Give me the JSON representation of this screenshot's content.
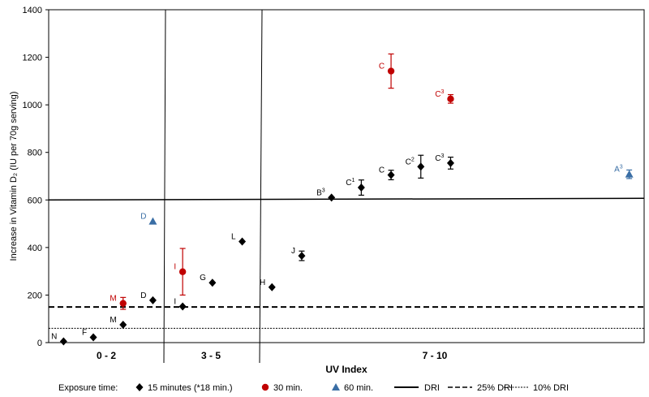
{
  "chart_data": {
    "type": "scatter",
    "ylabel": "Increase in Vitamin D₂ (IU per 70g serving)",
    "xlabel": "UV Index",
    "ylim": [
      0,
      1400
    ],
    "yticks": [
      0,
      200,
      400,
      600,
      800,
      1000,
      1200,
      1400
    ],
    "groups": [
      "0 - 2",
      "3 - 5",
      "7 - 10"
    ],
    "colors": {
      "15": "#000000",
      "30": "#c00000",
      "60": "#3a6ea5"
    },
    "points": [
      {
        "series": "15",
        "label": "N",
        "x": 0.5,
        "y": 5
      },
      {
        "series": "15",
        "label": "F",
        "x": 1.5,
        "y": 22
      },
      {
        "series": "15",
        "label": "M",
        "x": 2.5,
        "y": 75
      },
      {
        "series": "30",
        "label": "M",
        "x": 2.5,
        "y": 165,
        "err": 25
      },
      {
        "series": "15",
        "label": "D",
        "x": 3.5,
        "y": 178
      },
      {
        "series": "60",
        "label": "D",
        "x": 3.5,
        "y": 510
      },
      {
        "series": "15",
        "label": "I",
        "x": 4.5,
        "y": 152
      },
      {
        "series": "30",
        "label": "I",
        "x": 4.5,
        "y": 298,
        "err": 98
      },
      {
        "series": "15",
        "label": "G",
        "x": 5.5,
        "y": 252
      },
      {
        "series": "15",
        "label": "L",
        "x": 6.5,
        "y": 425
      },
      {
        "series": "15",
        "label": "H",
        "x": 7.5,
        "y": 233
      },
      {
        "series": "15",
        "label": "J",
        "x": 8.5,
        "y": 365,
        "err": 20
      },
      {
        "series": "15",
        "label": "B",
        "sup": "3",
        "x": 9.5,
        "y": 610
      },
      {
        "series": "15",
        "label": "C",
        "sup": "1",
        "x": 10.5,
        "y": 652,
        "err": 32
      },
      {
        "series": "15",
        "label": "C",
        "x": 11.5,
        "y": 705,
        "err": 20
      },
      {
        "series": "30",
        "label": "C",
        "x": 11.5,
        "y": 1142,
        "err": 72
      },
      {
        "series": "15",
        "label": "C",
        "sup": "2",
        "x": 12.5,
        "y": 740,
        "err": 48
      },
      {
        "series": "15",
        "label": "C",
        "sup": "3",
        "x": 13.5,
        "y": 755,
        "err": 25
      },
      {
        "series": "30",
        "label": "C",
        "sup": "3",
        "x": 13.5,
        "y": 1025,
        "err": 18
      },
      {
        "series": "60",
        "label": "A",
        "sup": "3",
        "x": 19.5,
        "y": 708,
        "err": 18
      }
    ],
    "reference_lines": [
      {
        "name": "DRI",
        "y": 600,
        "style": "solid"
      },
      {
        "name": "25% DRI",
        "y": 150,
        "style": "dashed"
      },
      {
        "name": "10% DRI",
        "y": 60,
        "style": "dotted"
      }
    ],
    "legend": {
      "title": "Exposure time:",
      "items": [
        {
          "key": "15",
          "marker": "diamond",
          "label": "15 minutes (*18 min.)"
        },
        {
          "key": "30",
          "marker": "circle",
          "label": "30 min."
        },
        {
          "key": "60",
          "marker": "triangle",
          "label": "60 min."
        },
        {
          "key": "DRI",
          "marker": "solid",
          "label": "DRI"
        },
        {
          "key": "25% DRI",
          "marker": "dashed",
          "label": "25% DRI"
        },
        {
          "key": "10% DRI",
          "marker": "dotted",
          "label": "10% DRI"
        }
      ]
    }
  }
}
